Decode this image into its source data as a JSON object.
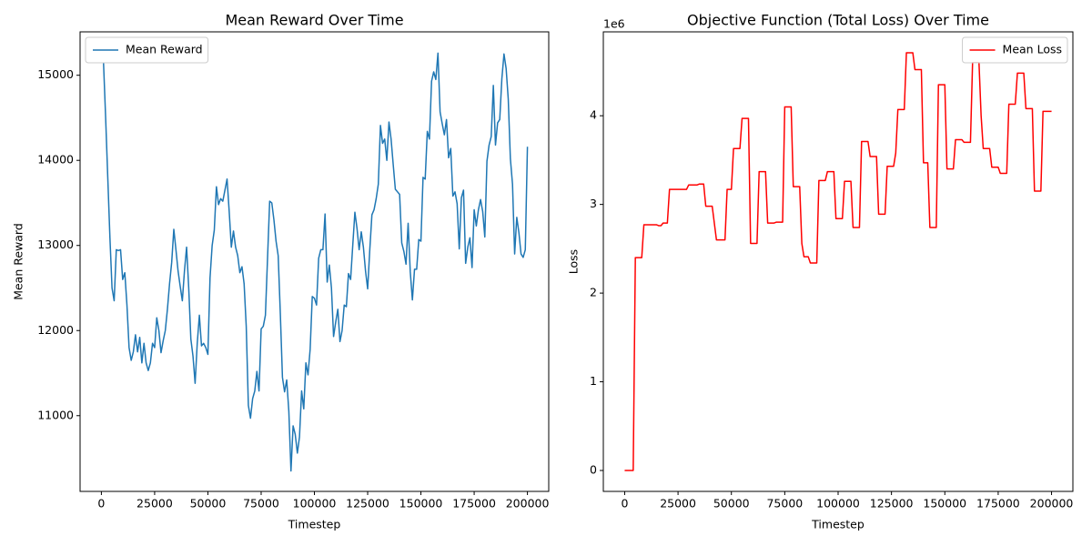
{
  "chart_data": [
    {
      "type": "line",
      "title": "Mean Reward Over Time",
      "xlabel": "Timestep",
      "ylabel": "Mean Reward",
      "xlim": [
        -10000,
        210000
      ],
      "ylim": [
        10110,
        15510
      ],
      "xticks": [
        0,
        25000,
        50000,
        75000,
        100000,
        125000,
        150000,
        175000,
        200000
      ],
      "yticks": [
        11000,
        12000,
        13000,
        14000,
        15000
      ],
      "legend": "upper left",
      "grid": false,
      "series": [
        {
          "name": "Mean Reward",
          "color": "#1f77b4",
          "x": [
            1000,
            2000,
            3000,
            4000,
            5000,
            6000,
            7000,
            8000,
            9000,
            10000,
            11000,
            12000,
            13000,
            14000,
            15000,
            16000,
            17000,
            18000,
            19000,
            20000,
            21000,
            22000,
            23000,
            24000,
            25000,
            26000,
            27000,
            28000,
            29000,
            30000,
            31000,
            32000,
            33000,
            34000,
            35000,
            36000,
            37000,
            38000,
            39000,
            40000,
            41000,
            42000,
            43000,
            44000,
            45000,
            46000,
            47000,
            48000,
            49000,
            50000,
            51000,
            52000,
            53000,
            54000,
            55000,
            56000,
            57000,
            58000,
            59000,
            60000,
            61000,
            62000,
            63000,
            64000,
            65000,
            66000,
            67000,
            68000,
            69000,
            70000,
            71000,
            72000,
            73000,
            74000,
            75000,
            76000,
            77000,
            78000,
            79000,
            80000,
            81000,
            82000,
            83000,
            84000,
            85000,
            86000,
            87000,
            88000,
            89000,
            90000,
            91000,
            92000,
            93000,
            94000,
            95000,
            96000,
            97000,
            98000,
            99000,
            100000,
            101000,
            102000,
            103000,
            104000,
            105000,
            106000,
            107000,
            108000,
            109000,
            110000,
            111000,
            112000,
            113000,
            114000,
            115000,
            116000,
            117000,
            118000,
            119000,
            120000,
            121000,
            122000,
            123000,
            124000,
            125000,
            126000,
            127000,
            128000,
            129000,
            130000,
            131000,
            132000,
            133000,
            134000,
            135000,
            136000,
            137000,
            138000,
            139000,
            140000,
            141000,
            142000,
            143000,
            144000,
            145000,
            146000,
            147000,
            148000,
            149000,
            150000,
            151000,
            152000,
            153000,
            154000,
            155000,
            156000,
            157000,
            158000,
            159000,
            160000,
            161000,
            162000,
            163000,
            164000,
            165000,
            166000,
            167000,
            168000,
            169000,
            170000,
            171000,
            172000,
            173000,
            174000,
            175000,
            176000,
            177000,
            178000,
            179000,
            180000,
            181000,
            182000,
            183000,
            184000,
            185000,
            186000,
            187000,
            188000,
            189000,
            190000,
            191000,
            192000,
            193000,
            194000,
            195000,
            196000,
            197000,
            198000,
            199000,
            200000
          ],
          "values": [
            15150,
            14500,
            13800,
            13100,
            12500,
            12350,
            12950,
            12940,
            12950,
            12600,
            12680,
            12300,
            11800,
            11650,
            11750,
            11950,
            11750,
            11920,
            11620,
            11850,
            11620,
            11530,
            11620,
            11850,
            11800,
            12150,
            12000,
            11740,
            11880,
            12000,
            12250,
            12550,
            12800,
            13190,
            12950,
            12700,
            12520,
            12350,
            12700,
            12980,
            12500,
            11900,
            11700,
            11380,
            11850,
            12180,
            11820,
            11850,
            11800,
            11720,
            12620,
            13000,
            13180,
            13690,
            13480,
            13550,
            13520,
            13650,
            13780,
            13400,
            12980,
            13170,
            12980,
            12880,
            12680,
            12750,
            12550,
            12050,
            11120,
            10970,
            11200,
            11290,
            11520,
            11290,
            12020,
            12050,
            12180,
            12850,
            13520,
            13500,
            13300,
            13050,
            12880,
            12200,
            11450,
            11280,
            11420,
            11050,
            10350,
            10880,
            10780,
            10560,
            10750,
            11290,
            11080,
            11620,
            11480,
            11780,
            12400,
            12380,
            12300,
            12850,
            12950,
            12950,
            13370,
            12570,
            12770,
            12500,
            11930,
            12100,
            12250,
            11870,
            12000,
            12300,
            12280,
            12670,
            12600,
            13000,
            13390,
            13200,
            12950,
            13160,
            12980,
            12700,
            12490,
            12950,
            13360,
            13420,
            13550,
            13720,
            14410,
            14200,
            14250,
            14000,
            14450,
            14250,
            13950,
            13660,
            13630,
            13600,
            13030,
            12930,
            12780,
            13260,
            12690,
            12360,
            12720,
            12720,
            13070,
            13050,
            13800,
            13780,
            14340,
            14250,
            14930,
            15040,
            14950,
            15260,
            14570,
            14430,
            14300,
            14480,
            14030,
            14140,
            13580,
            13630,
            13490,
            12960,
            13560,
            13650,
            12790,
            12980,
            13090,
            12740,
            13420,
            13230,
            13420,
            13540,
            13400,
            13100,
            13990,
            14180,
            14280,
            14880,
            14180,
            14440,
            14480,
            14960,
            15250,
            15080,
            14720,
            14020,
            13720,
            12900,
            13330,
            13150,
            12900,
            12860,
            12950,
            14160
          ]
        }
      ]
    },
    {
      "type": "line",
      "title": "Objective Function (Total Loss) Over Time",
      "xlabel": "Timestep",
      "ylabel": "Loss",
      "y_offset_label": "1e6",
      "xlim": [
        -10000,
        210000
      ],
      "ylim": [
        -0.236,
        4.946
      ],
      "xticks": [
        0,
        25000,
        50000,
        75000,
        100000,
        125000,
        150000,
        175000,
        200000
      ],
      "yticks": [
        0,
        1,
        2,
        3,
        4
      ],
      "legend": "upper right",
      "grid": false,
      "series": [
        {
          "name": "Mean Loss",
          "color": "#ff0000",
          "x": [
            0,
            4000,
            5000,
            8000,
            9000,
            15000,
            16000,
            17000,
            18000,
            20000,
            21000,
            29000,
            30000,
            34000,
            35000,
            37000,
            38000,
            41000,
            43000,
            47000,
            48000,
            50000,
            51000,
            54000,
            55000,
            58000,
            59000,
            62000,
            63000,
            66000,
            67000,
            70000,
            71000,
            74000,
            75000,
            78000,
            79000,
            82000,
            83000,
            84000,
            86000,
            87000,
            90000,
            91000,
            94000,
            95000,
            98000,
            99000,
            102000,
            103000,
            106000,
            107000,
            110000,
            111000,
            114000,
            115000,
            118000,
            119000,
            122000,
            123000,
            126000,
            127000,
            128000,
            131000,
            132000,
            135000,
            136000,
            139000,
            140000,
            142000,
            143000,
            146000,
            147000,
            150000,
            151000,
            154000,
            155000,
            158000,
            159000,
            162000,
            163000,
            166000,
            167000,
            168000,
            171000,
            172000,
            175000,
            176000,
            179000,
            180000,
            183000,
            184000,
            187000,
            188000,
            191000,
            192000,
            195000,
            196000,
            200000
          ],
          "values": [
            0,
            0,
            2.4,
            2.4,
            2.77,
            2.77,
            2.76,
            2.76,
            2.79,
            2.79,
            3.17,
            3.17,
            3.22,
            3.22,
            3.23,
            3.23,
            2.98,
            2.98,
            2.6,
            2.6,
            3.17,
            3.17,
            3.63,
            3.63,
            3.97,
            3.97,
            2.56,
            2.56,
            3.37,
            3.37,
            2.79,
            2.79,
            2.8,
            2.8,
            4.1,
            4.1,
            3.2,
            3.2,
            2.56,
            2.41,
            2.41,
            2.34,
            2.34,
            3.27,
            3.27,
            3.37,
            3.37,
            2.84,
            2.84,
            3.26,
            3.26,
            2.74,
            2.74,
            3.71,
            3.71,
            3.54,
            3.54,
            2.89,
            2.89,
            3.43,
            3.43,
            3.58,
            4.07,
            4.07,
            4.71,
            4.71,
            4.52,
            4.52,
            3.47,
            3.47,
            2.74,
            2.74,
            4.35,
            4.35,
            3.4,
            3.4,
            3.73,
            3.73,
            3.7,
            3.7,
            4.6,
            4.6,
            4.0,
            3.63,
            3.63,
            3.42,
            3.42,
            3.35,
            3.35,
            4.13,
            4.13,
            4.48,
            4.48,
            4.08,
            4.08,
            3.15,
            3.15,
            4.05,
            4.05
          ]
        }
      ]
    }
  ]
}
